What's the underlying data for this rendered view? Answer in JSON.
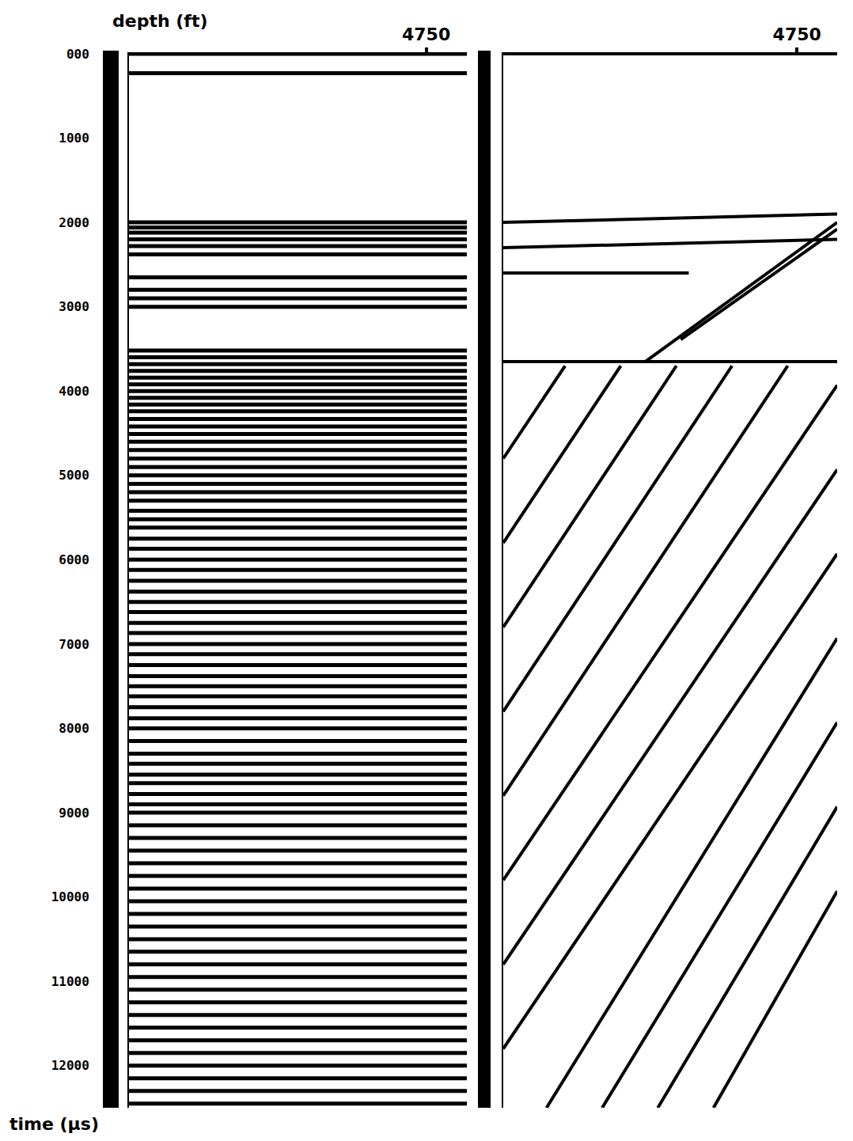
{
  "chart_data": {
    "type": "line",
    "ylabel": "depth (ft)",
    "xlabel": "time (µs)",
    "color": "#000000",
    "xlim": [
      0,
      5400
    ],
    "xticks": [
      4750
    ],
    "ylim": [
      12500,
      0
    ],
    "yticks": [
      {
        "value": 0,
        "label": "000"
      },
      1000,
      2000,
      3000,
      4000,
      5000,
      6000,
      7000,
      8000,
      9000,
      10000,
      11000,
      12000
    ],
    "panels": [
      {
        "reflectors": [
          0,
          230,
          2000,
          2060,
          2120,
          2200,
          2280,
          2380,
          2650,
          2800,
          2900,
          3000,
          3520,
          3600,
          3680,
          3760,
          3840,
          3920,
          4000,
          4080,
          4160,
          4240,
          4330,
          4420,
          4510,
          4600,
          4700,
          4800,
          4900,
          5000,
          5100,
          5200,
          5300,
          5420,
          5520,
          5620,
          5750,
          5870,
          6000,
          6120,
          6250,
          6380,
          6500,
          6620,
          6750,
          6870,
          7000,
          7120,
          7250,
          7380,
          7500,
          7620,
          7750,
          7880,
          8000,
          8150,
          8300,
          8420,
          8550,
          8650,
          8780,
          8900,
          9000,
          9150,
          9300,
          9450,
          9600,
          9750,
          9900,
          10050,
          10200,
          10350,
          10500,
          10650,
          10800,
          10950,
          11100,
          11250,
          11400,
          11550,
          11700,
          11850,
          12000,
          12150,
          12300,
          12450
        ]
      },
      {
        "segments": [
          [
            0,
            0,
            5400,
            0
          ],
          [
            0,
            2000,
            5400,
            1900
          ],
          [
            0,
            2300,
            5400,
            2200
          ],
          [
            0,
            2600,
            3000,
            2600
          ],
          [
            0,
            3650,
            5400,
            3650
          ],
          [
            2300,
            3650,
            5400,
            2000
          ],
          [
            2870,
            3390,
            5400,
            2080
          ],
          [
            0,
            4800,
            1000,
            3700
          ],
          [
            0,
            5800,
            1900,
            3700
          ],
          [
            0,
            6800,
            2800,
            3700
          ],
          [
            0,
            7800,
            3700,
            3700
          ],
          [
            0,
            8800,
            4600,
            3700
          ],
          [
            0,
            9800,
            5400,
            3930
          ],
          [
            0,
            10800,
            5400,
            4930
          ],
          [
            0,
            11800,
            5400,
            5930
          ],
          [
            700,
            12500,
            5400,
            6930
          ],
          [
            1600,
            12500,
            5400,
            7930
          ],
          [
            2500,
            12500,
            5400,
            8930
          ],
          [
            3400,
            12500,
            5400,
            9930
          ]
        ]
      }
    ]
  }
}
